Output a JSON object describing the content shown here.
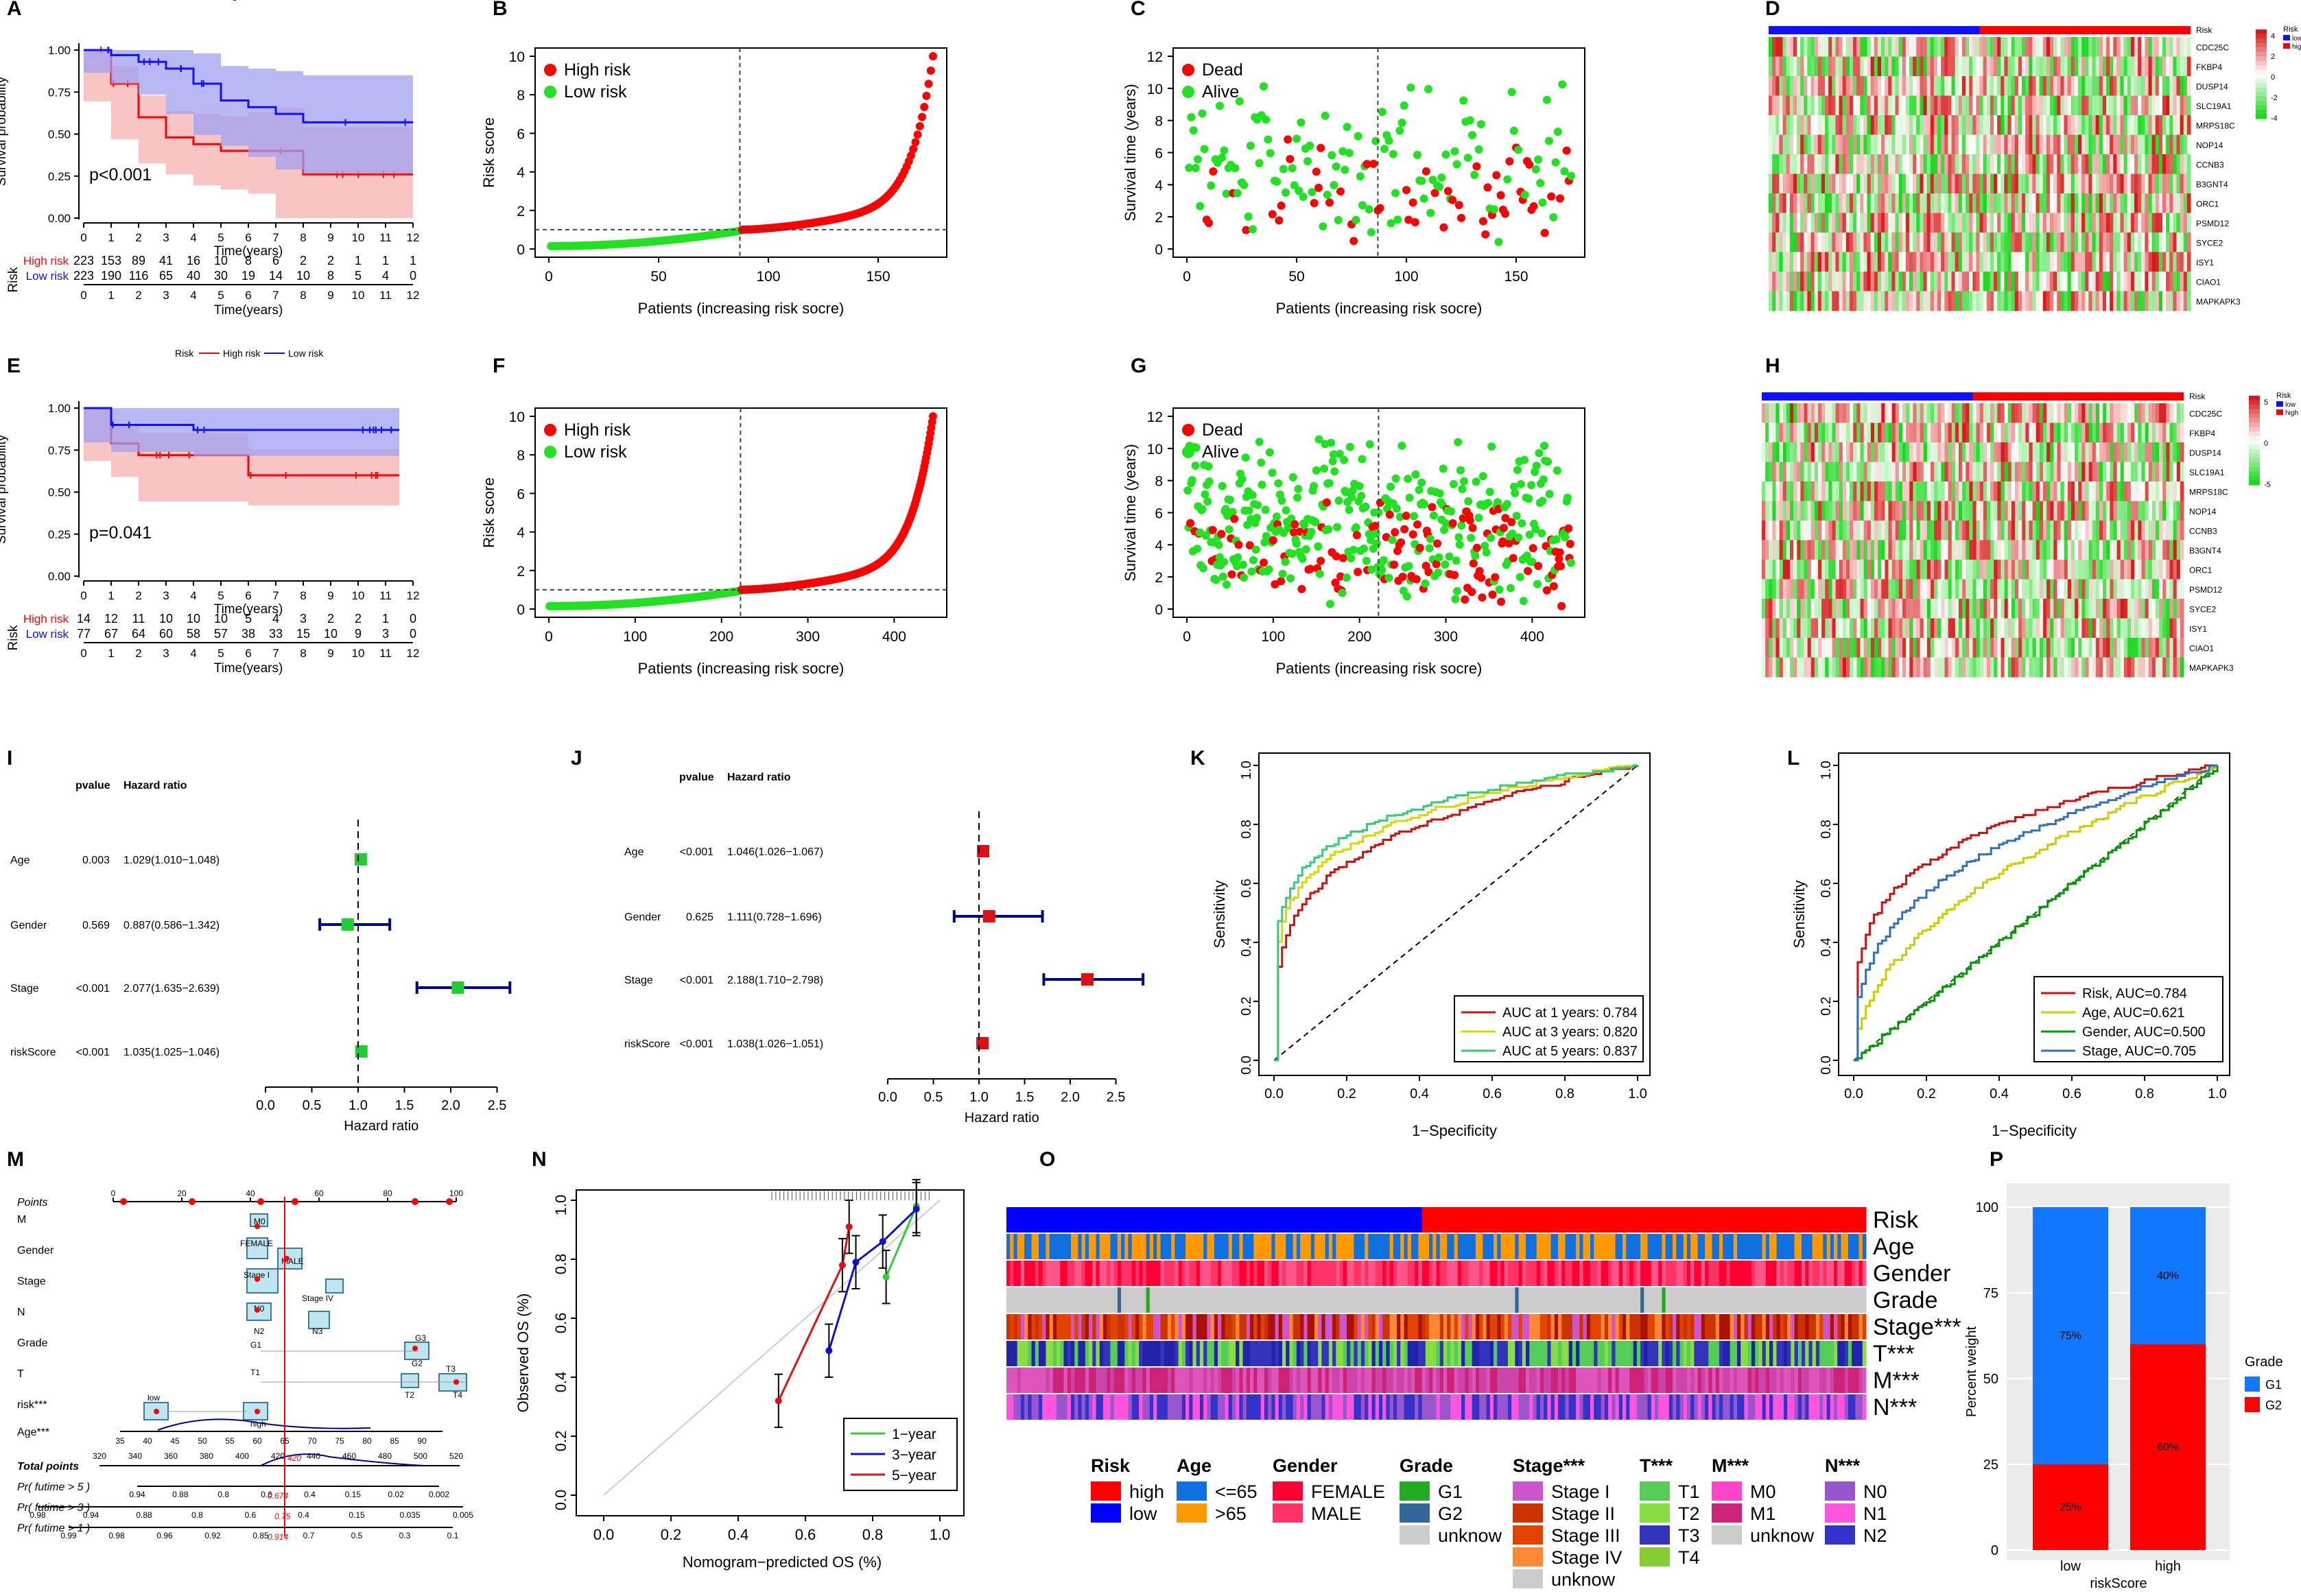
{
  "colors": {
    "red": "#ff0000",
    "green": "#22e022",
    "blue": "#1010ff",
    "pink": "#f7b0b0",
    "lavender": "#a0a0f0",
    "dark_red": "#cc1111",
    "navy": "#000088",
    "gold": "#d8d800",
    "teal": "#33cc77",
    "steel": "#3070c0"
  },
  "panel_letters": [
    "A",
    "B",
    "C",
    "D",
    "E",
    "F",
    "G",
    "H",
    "I",
    "J",
    "K",
    "L",
    "M",
    "N",
    "O",
    "P"
  ],
  "km_common": {
    "legend_title": "Risk",
    "legend_high": "High risk",
    "legend_low": "Low risk",
    "ylabel": "Survival probability",
    "xlabel": "Time(years)",
    "yticks": [
      "0.00",
      "0.25",
      "0.50",
      "0.75",
      "1.00"
    ],
    "xticks": [
      "0",
      "1",
      "2",
      "3",
      "4",
      "5",
      "6",
      "7",
      "8",
      "9",
      "10",
      "11",
      "12"
    ],
    "table_title": "Risk",
    "row_high": "High risk",
    "row_low": "Low risk"
  },
  "panel_a": {
    "pvalue": "p<0.001",
    "high_counts": [
      "223",
      "153",
      "89",
      "41",
      "16",
      "10",
      "8",
      "6",
      "2",
      "2",
      "1",
      "1",
      "1"
    ],
    "low_counts": [
      "223",
      "190",
      "116",
      "65",
      "40",
      "30",
      "19",
      "14",
      "10",
      "8",
      "5",
      "4",
      "0"
    ]
  },
  "panel_e": {
    "pvalue": "p=0.041",
    "high_counts": [
      "14",
      "12",
      "11",
      "10",
      "10",
      "10",
      "5",
      "4",
      "3",
      "2",
      "2",
      "1",
      "0"
    ],
    "low_counts": [
      "77",
      "67",
      "64",
      "60",
      "58",
      "57",
      "38",
      "33",
      "15",
      "10",
      "9",
      "3",
      "0"
    ]
  },
  "score_common": {
    "ylabel": "Risk score",
    "xlabel": "Patients (increasing risk socre)",
    "legend_high": "High risk",
    "legend_low": "Low risk",
    "yticks": [
      "0",
      "2",
      "4",
      "6",
      "8",
      "10"
    ]
  },
  "panel_b": {
    "xticks": [
      "0",
      "50",
      "100",
      "150"
    ]
  },
  "panel_f": {
    "xticks": [
      "0",
      "100",
      "200",
      "300",
      "400"
    ]
  },
  "status_common": {
    "ylabel": "Survival time (years)",
    "xlabel": "Patients (increasing risk socre)",
    "legend_dead": "Dead",
    "legend_alive": "Alive",
    "yticks": [
      "0",
      "2",
      "4",
      "6",
      "8",
      "10",
      "12"
    ]
  },
  "panel_c": {
    "xticks": [
      "0",
      "50",
      "100",
      "150"
    ]
  },
  "panel_g": {
    "xticks": [
      "0",
      "100",
      "200",
      "300",
      "400"
    ]
  },
  "heat_common": {
    "genes": [
      "CDC25C",
      "FKBP4",
      "DUSP14",
      "SLC19A1",
      "MRPS18C",
      "NOP14",
      "CCNB3",
      "B3GNT4",
      "ORC1",
      "PSMD12",
      "SYCE2",
      "ISY1",
      "CIAO1",
      "MAPKAPK3"
    ],
    "risk_label": "Risk",
    "legend_low": "low",
    "legend_high": "high"
  },
  "panel_d": {
    "scale_ticks": [
      "4",
      "2",
      "0",
      "-2",
      "-4"
    ]
  },
  "panel_h": {
    "scale_ticks": [
      "5",
      "0",
      "-5"
    ]
  },
  "forest_common": {
    "col_pvalue": "pvalue",
    "col_hr": "Hazard ratio",
    "xlabel": "Hazard ratio",
    "xticks": [
      "0.0",
      "0.5",
      "1.0",
      "1.5",
      "2.0",
      "2.5"
    ],
    "vars": [
      "Age",
      "Gender",
      "Stage",
      "riskScore"
    ]
  },
  "panel_i": {
    "pvalues": [
      "0.003",
      "0.569",
      "<0.001",
      "<0.001"
    ],
    "hrs": [
      "1.029(1.010−1.048)",
      "0.887(0.586−1.342)",
      "2.077(1.635−2.639)",
      "1.035(1.025−1.046)"
    ]
  },
  "panel_j": {
    "pvalues": [
      "<0.001",
      "0.625",
      "<0.001",
      "<0.001"
    ],
    "hrs": [
      "1.046(1.026−1.067)",
      "1.111(0.728−1.696)",
      "2.188(1.710−2.798)",
      "1.038(1.026−1.051)"
    ]
  },
  "roc_common": {
    "ylabel": "Sensitivity",
    "xlabel": "1−Specificity",
    "ticks": [
      "0.0",
      "0.2",
      "0.4",
      "0.6",
      "0.8",
      "1.0"
    ]
  },
  "panel_k": {
    "legend": [
      "AUC at 1 years: 0.784",
      "AUC at 3 years: 0.820",
      "AUC at 5 years: 0.837"
    ]
  },
  "panel_l": {
    "legend": [
      "Risk, AUC=0.784",
      "Age, AUC=0.621",
      "Gender, AUC=0.500",
      "Stage, AUC=0.705"
    ]
  },
  "panel_m": {
    "rows": [
      "Points",
      "M",
      "Gender",
      "Stage",
      "N",
      "Grade",
      "T",
      "risk***",
      "Age***",
      "Total points",
      "Pr( futime > 5 )",
      "Pr( futime > 3 )",
      "Pr( futime > 1 )"
    ],
    "points_ticks": [
      "0",
      "20",
      "40",
      "60",
      "80",
      "100"
    ],
    "total_ticks": [
      "320",
      "340",
      "360",
      "380",
      "400",
      "420",
      "440",
      "460",
      "480",
      "500",
      "520"
    ],
    "age_ticks": [
      "35",
      "40",
      "45",
      "50",
      "55",
      "60",
      "65",
      "70",
      "75",
      "80",
      "85",
      "90"
    ],
    "p5_ticks": [
      "0.94",
      "0.88",
      "0.8",
      "0.6",
      "0.4",
      "0.15",
      "0.02",
      "0.002"
    ],
    "p3_ticks": [
      "0.98",
      "0.94",
      "0.88",
      "0.8",
      "0.6",
      "0.4",
      "0.15",
      "0.035",
      "0.005"
    ],
    "p1_ticks": [
      "0.99",
      "0.98",
      "0.96",
      "0.92",
      "0.85",
      "0.7",
      "0.5",
      "0.3",
      "0.1"
    ],
    "labels": {
      "m0": "M0",
      "m1": "M1",
      "female": "FEMALE",
      "male": "MALE",
      "stage_mid": "Stage I",
      "stage_iv": "Stage IV",
      "n0": "N0",
      "n1": "N1",
      "n2": "N2",
      "n3": "N3",
      "g1": "G1",
      "g2": "G2",
      "g3": "G3",
      "t1": "T1",
      "t2": "T2",
      "t3": "T3",
      "t4": "T4",
      "low": "low",
      "high": "high"
    },
    "red_values": [
      "420",
      "0.674",
      "0.75",
      "0.914"
    ]
  },
  "panel_n": {
    "ylabel": "Observed OS (%)",
    "xlabel": "Nomogram−predicted OS (%)",
    "ticks": [
      "0.0",
      "0.2",
      "0.4",
      "0.6",
      "0.8",
      "1.0"
    ],
    "legend": [
      "1−year",
      "3−year",
      "5−year"
    ]
  },
  "panel_o": {
    "rows": [
      "Risk",
      "Age",
      "Gender",
      "Grade",
      "Stage***",
      "T***",
      "M***",
      "N***"
    ],
    "legend": [
      {
        "title": "Risk",
        "items": [
          "high",
          "low"
        ]
      },
      {
        "title": "Age",
        "items": [
          "<=65",
          ">65"
        ]
      },
      {
        "title": "Gender",
        "items": [
          "FEMALE",
          "MALE"
        ]
      },
      {
        "title": "Grade",
        "items": [
          "G1",
          "G2",
          "unknow"
        ]
      },
      {
        "title": "Stage***",
        "items": [
          "Stage I",
          "Stage II",
          "Stage III",
          "Stage IV",
          "unknow"
        ]
      },
      {
        "title": "T***",
        "items": [
          "T1",
          "T2",
          "T3",
          "T4"
        ]
      },
      {
        "title": "M***",
        "items": [
          "M0",
          "M1",
          "unknow"
        ]
      },
      {
        "title": "N***",
        "items": [
          "N0",
          "N1",
          "N2"
        ]
      }
    ]
  },
  "panel_p": {
    "ylabel": "Percent weight",
    "xlabel": "riskScore",
    "yticks": [
      "0",
      "25",
      "50",
      "75",
      "100"
    ],
    "categories": [
      "low",
      "high"
    ],
    "legend_title": "Grade",
    "legend_items": [
      "G1",
      "G2"
    ],
    "bar_labels": [
      "75%",
      "25%",
      "40%",
      "60%"
    ]
  },
  "chart_data": [
    {
      "panel": "A",
      "type": "line",
      "title": "",
      "xlabel": "Time(years)",
      "ylabel": "Survival probability",
      "xlim": [
        0,
        12
      ],
      "ylim": [
        0,
        1
      ],
      "series": [
        {
          "name": "High risk",
          "x": [
            0,
            1,
            2,
            3,
            4,
            5,
            6,
            7,
            8,
            12
          ],
          "y": [
            1.0,
            0.8,
            0.6,
            0.48,
            0.44,
            0.4,
            0.4,
            0.4,
            0.26,
            0.26
          ]
        },
        {
          "name": "Low risk",
          "x": [
            0,
            1,
            2,
            3,
            4,
            5,
            6,
            7,
            8,
            12
          ],
          "y": [
            1.0,
            0.97,
            0.93,
            0.89,
            0.8,
            0.7,
            0.66,
            0.62,
            0.57,
            0.57
          ]
        }
      ]
    },
    {
      "panel": "E",
      "type": "line",
      "xlabel": "Time(years)",
      "ylabel": "Survival probability",
      "xlim": [
        0,
        12
      ],
      "ylim": [
        0,
        1
      ],
      "series": [
        {
          "name": "High risk",
          "x": [
            0,
            1,
            2,
            6,
            11.5
          ],
          "y": [
            1.0,
            0.79,
            0.72,
            0.6,
            0.6
          ]
        },
        {
          "name": "Low risk",
          "x": [
            0,
            1,
            4,
            11.5
          ],
          "y": [
            1.0,
            0.9,
            0.87,
            0.87
          ]
        }
      ]
    },
    {
      "panel": "B",
      "type": "scatter",
      "xlabel": "Patients (increasing risk socre)",
      "ylabel": "Risk score",
      "xlim": [
        0,
        175
      ],
      "ylim": [
        0,
        10
      ],
      "cutoff_x": 87,
      "cutoff_y": 1
    },
    {
      "panel": "F",
      "type": "scatter",
      "xlabel": "Patients (increasing risk socre)",
      "ylabel": "Risk score",
      "xlim": [
        0,
        445
      ],
      "ylim": [
        0,
        10
      ],
      "cutoff_x": 222,
      "cutoff_y": 1
    },
    {
      "panel": "K",
      "type": "line",
      "series": [
        {
          "name": "AUC at 1 years: 0.784"
        },
        {
          "name": "AUC at 3 years: 0.820"
        },
        {
          "name": "AUC at 5 years: 0.837"
        }
      ]
    },
    {
      "panel": "L",
      "type": "line",
      "series": [
        {
          "name": "Risk, AUC=0.784"
        },
        {
          "name": "Age, AUC=0.621"
        },
        {
          "name": "Gender, AUC=0.500"
        },
        {
          "name": "Stage, AUC=0.705"
        }
      ]
    },
    {
      "panel": "N",
      "type": "line",
      "series": [
        {
          "name": "1-year",
          "x": [
            0.84,
            0.93
          ],
          "y": [
            0.74,
            0.98
          ]
        },
        {
          "name": "3-year",
          "x": [
            0.67,
            0.75,
            0.83,
            0.93
          ],
          "y": [
            0.49,
            0.79,
            0.86,
            0.97
          ]
        },
        {
          "name": "5-year",
          "x": [
            0.52,
            0.71,
            0.73
          ],
          "y": [
            0.32,
            0.78,
            0.91
          ]
        }
      ]
    },
    {
      "panel": "P",
      "type": "bar",
      "categories": [
        "low",
        "high"
      ],
      "series": [
        {
          "name": "G1",
          "values": [
            75,
            40
          ]
        },
        {
          "name": "G2",
          "values": [
            25,
            60
          ]
        }
      ],
      "ylabel": "Percent weight",
      "xlabel": "riskScore",
      "ylim": [
        0,
        100
      ]
    }
  ]
}
